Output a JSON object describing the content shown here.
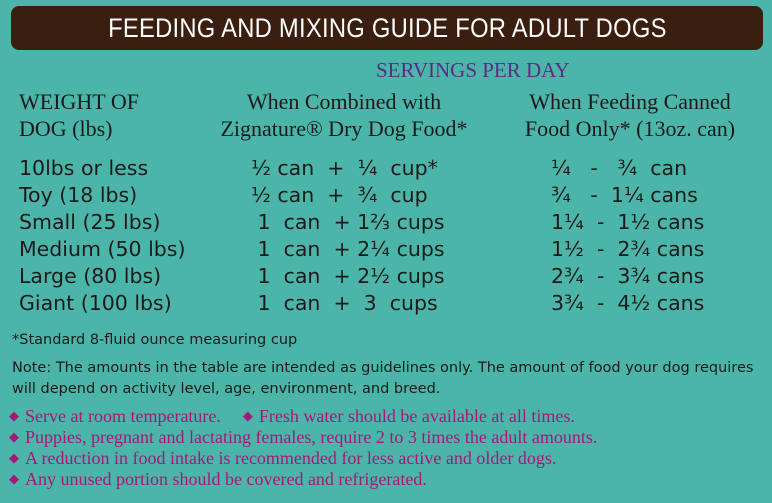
{
  "title": "FEEDING AND MIXING GUIDE FOR ADULT DOGS",
  "servings_label": "SERVINGS PER DAY",
  "headers": {
    "weight": [
      "WEIGHT OF",
      "DOG (lbs)"
    ],
    "combined": [
      "When Combined with",
      "Zignature® Dry Dog Food*"
    ],
    "canned": [
      "When Feeding Canned",
      "Food Only* (13oz. can)"
    ]
  },
  "rows": [
    {
      "weight": "10lbs or less",
      "combined": "½ can  +  ¼  cup*",
      "canned": "¼   -   ¾  can"
    },
    {
      "weight": "Toy (18 lbs)",
      "combined": "½ can  +  ¾  cup",
      "canned": "¾   -  1¼ cans"
    },
    {
      "weight": "Small (25 lbs)",
      "combined": " 1  can  + 1⅔ cups",
      "canned": "1¼  -  1½ cans"
    },
    {
      "weight": "Medium (50 lbs)",
      "combined": " 1  can  + 2¼ cups",
      "canned": "1½  -  2¾ cans"
    },
    {
      "weight": "Large (80 lbs)",
      "combined": " 1  can  + 2½ cups",
      "canned": "2¾  -  3¾ cans"
    },
    {
      "weight": "Giant (100 lbs)",
      "combined": " 1  can  +  3  cups",
      "canned": "3¾  -  4½ cans"
    }
  ],
  "footnote": "*Standard 8-fluid ounce measuring cup",
  "note": "Note: The amounts in the table are intended as guidelines only. The amount of food your dog requires will depend on activity level, age, environment, and breed.",
  "bullets": {
    "line1_a": "Serve at room temperature.",
    "line1_b": "Fresh water should be available at all times.",
    "line2": "Puppies, pregnant and lactating females, require 2 to 3 times the adult amounts.",
    "line3": "A reduction in food intake is recommended for less active and older dogs.",
    "line4": "Any unused portion should be covered and refrigerated."
  },
  "bullet_symbol": "◆",
  "colors": {
    "background": "#4cb5a9",
    "banner": "#3a1f10",
    "servings": "#5b2c86",
    "bullets": "#a3187a"
  }
}
